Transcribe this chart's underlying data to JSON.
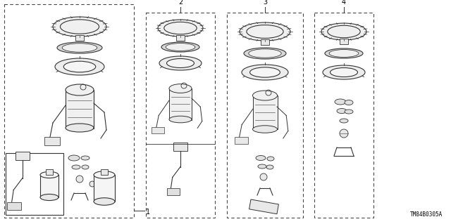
{
  "background_color": "#ffffff",
  "line_color": "#333333",
  "text_color": "#000000",
  "part_number": "TM84B0305A",
  "fig_width": 6.4,
  "fig_height": 3.19,
  "dpi": 100
}
